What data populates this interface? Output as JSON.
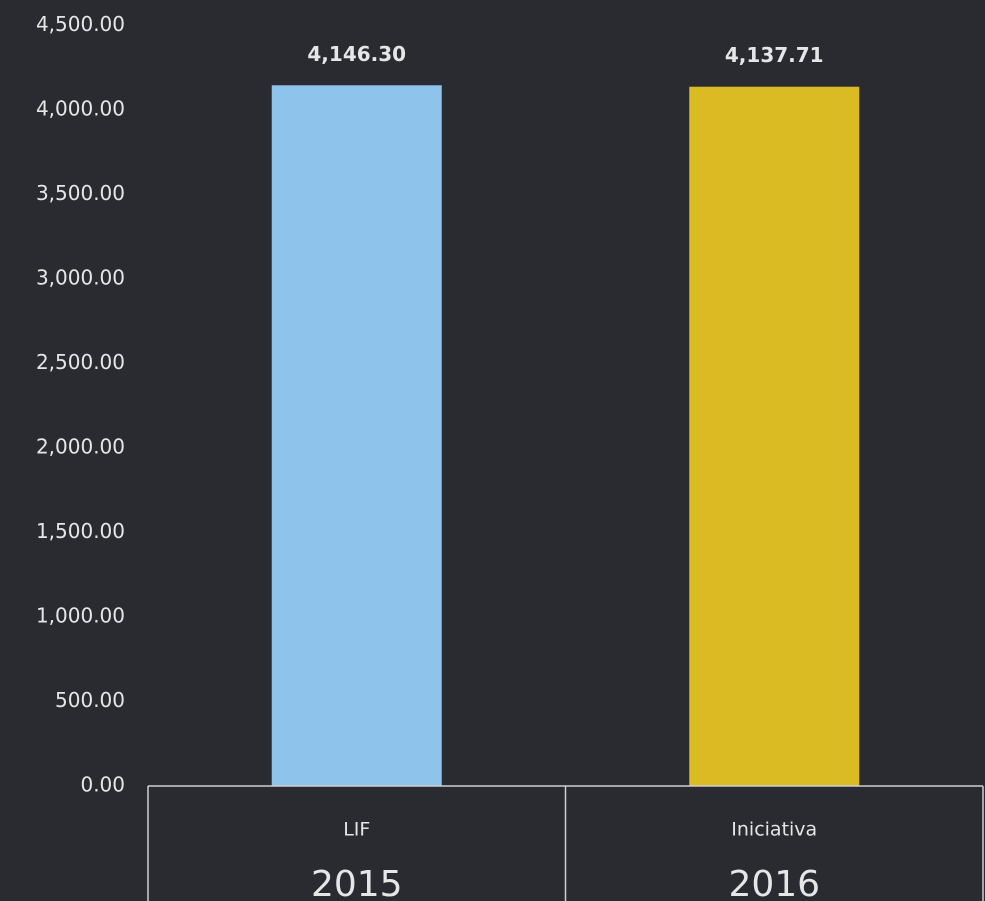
{
  "chart_data": {
    "type": "bar",
    "categories": [
      "LIF",
      "Iniciativa"
    ],
    "groups": [
      "2015",
      "2016"
    ],
    "values": [
      4146.3,
      4137.71
    ],
    "value_labels": [
      "4,146.30",
      "4,137.71"
    ],
    "colors": [
      "#8ec4ec",
      "#dbbb24"
    ],
    "ylim": [
      0,
      4500
    ],
    "yticks": [
      {
        "value": 0,
        "label": "0.00"
      },
      {
        "value": 500,
        "label": "500.00"
      },
      {
        "value": 1000,
        "label": "1,000.00"
      },
      {
        "value": 1500,
        "label": "1,500.00"
      },
      {
        "value": 2000,
        "label": "2,000.00"
      },
      {
        "value": 2500,
        "label": "2,500.00"
      },
      {
        "value": 3000,
        "label": "3,000.00"
      },
      {
        "value": 3500,
        "label": "3,500.00"
      },
      {
        "value": 4000,
        "label": "4,000.00"
      },
      {
        "value": 4500,
        "label": "4,500.00"
      }
    ],
    "grid": false
  }
}
